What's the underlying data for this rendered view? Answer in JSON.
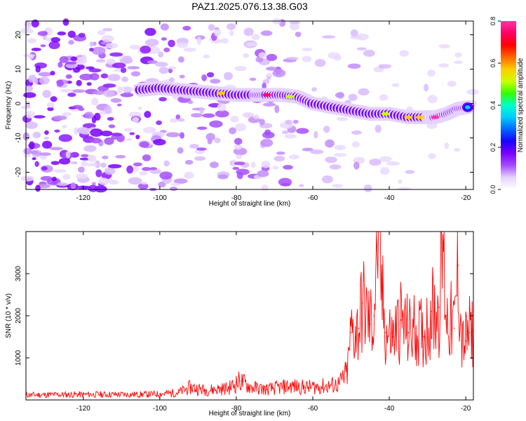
{
  "figure": {
    "title": "PAZ1.2025.076.13.38.G03"
  },
  "chart_data": [
    {
      "type": "heatmap",
      "xlabel": "Height of straight line (km)",
      "ylabel": "Frequency (Hz)",
      "xlim": [
        -135,
        -18
      ],
      "ylim": [
        -25,
        24
      ],
      "xticks": [
        -120,
        -100,
        -80,
        -60,
        -40,
        -20
      ],
      "yticks": [
        -20,
        -10,
        0,
        10,
        20
      ],
      "grid": false,
      "ridge": [
        {
          "x": -105,
          "y": 4
        },
        {
          "x": -100,
          "y": 4.5
        },
        {
          "x": -95,
          "y": 4
        },
        {
          "x": -90,
          "y": 3.5
        },
        {
          "x": -85,
          "y": 3
        },
        {
          "x": -80,
          "y": 2.5
        },
        {
          "x": -75,
          "y": 2.5
        },
        {
          "x": -72,
          "y": 2.5
        },
        {
          "x": -68,
          "y": 2.5
        },
        {
          "x": -64,
          "y": 2
        },
        {
          "x": -60,
          "y": 0
        },
        {
          "x": -55,
          "y": -1
        },
        {
          "x": -50,
          "y": -2
        },
        {
          "x": -45,
          "y": -3
        },
        {
          "x": -40,
          "y": -3
        },
        {
          "x": -35,
          "y": -4
        },
        {
          "x": -30,
          "y": -4
        },
        {
          "x": -28,
          "y": -4
        },
        {
          "x": -25,
          "y": -3
        },
        {
          "x": -22,
          "y": -1.5
        },
        {
          "x": -19,
          "y": -1
        }
      ],
      "colorbar": {
        "label": "Normalized spectral amplitude",
        "range": [
          0.0,
          0.8
        ],
        "ticks": [
          0.0,
          0.2,
          0.4,
          0.6,
          0.8
        ],
        "tick_labels": [
          "0.0",
          "0.2",
          "0.4",
          "0.6",
          "0.8"
        ],
        "colormap": [
          "#ffffff",
          "#e6d2ff",
          "#a64dff",
          "#7a00ff",
          "#1a00ff",
          "#0066ff",
          "#00ccff",
          "#00ffcc",
          "#33ff00",
          "#ccff00",
          "#ffcc00",
          "#ff6600",
          "#ff0000",
          "#ff0066",
          "#ff33aa"
        ]
      }
    },
    {
      "type": "line",
      "xlabel": "Height of straight line (km)",
      "ylabel": "SNR (10 * v/v)",
      "xlim": [
        -135,
        -18
      ],
      "ylim": [
        0,
        4000
      ],
      "xticks": [
        -120,
        -100,
        -80,
        -60,
        -40,
        -20
      ],
      "yticks": [
        1000,
        2000,
        3000
      ],
      "grid": false,
      "color": "#ff0000",
      "series": [
        {
          "values": [
            {
              "x": -135,
              "y": 120
            },
            {
              "x": -120,
              "y": 130
            },
            {
              "x": -105,
              "y": 130
            },
            {
              "x": -100,
              "y": 140
            },
            {
              "x": -95,
              "y": 180
            },
            {
              "x": -92,
              "y": 300
            },
            {
              "x": -88,
              "y": 230
            },
            {
              "x": -82,
              "y": 280
            },
            {
              "x": -79,
              "y": 450
            },
            {
              "x": -76,
              "y": 300
            },
            {
              "x": -72,
              "y": 250
            },
            {
              "x": -66,
              "y": 330
            },
            {
              "x": -62,
              "y": 300
            },
            {
              "x": -56,
              "y": 330
            },
            {
              "x": -53,
              "y": 380
            },
            {
              "x": -51,
              "y": 650
            },
            {
              "x": -50,
              "y": 1600
            },
            {
              "x": -48,
              "y": 1700
            },
            {
              "x": -47,
              "y": 2300
            },
            {
              "x": -45,
              "y": 1800
            },
            {
              "x": -44,
              "y": 2000
            },
            {
              "x": -43,
              "y": 4000
            },
            {
              "x": -42,
              "y": 2600
            },
            {
              "x": -41,
              "y": 1600
            },
            {
              "x": -39,
              "y": 1500
            },
            {
              "x": -37,
              "y": 1900
            },
            {
              "x": -35,
              "y": 1600
            },
            {
              "x": -33,
              "y": 1700
            },
            {
              "x": -31,
              "y": 1500
            },
            {
              "x": -29,
              "y": 2100
            },
            {
              "x": -27,
              "y": 2200
            },
            {
              "x": -26,
              "y": 3750
            },
            {
              "x": -25,
              "y": 2000
            },
            {
              "x": -23,
              "y": 1700
            },
            {
              "x": -22,
              "y": 3200
            },
            {
              "x": -21,
              "y": 1300
            },
            {
              "x": -20,
              "y": 1400
            },
            {
              "x": -19,
              "y": 1600
            },
            {
              "x": -18,
              "y": 1650
            }
          ]
        }
      ]
    }
  ]
}
